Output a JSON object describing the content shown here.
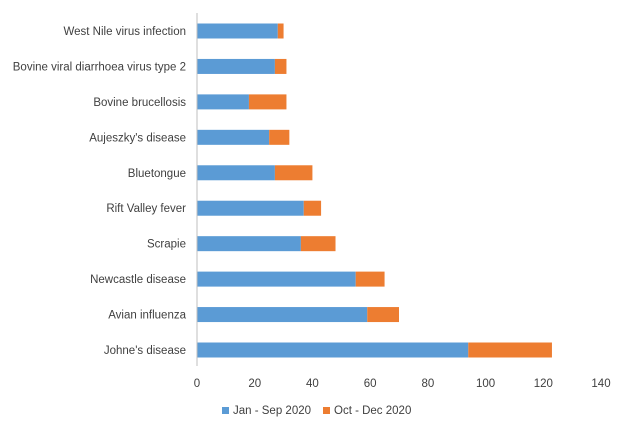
{
  "chart_data": {
    "type": "bar",
    "orientation": "horizontal",
    "stacked": true,
    "title": "",
    "xlabel": "",
    "ylabel": "",
    "categories": [
      "West Nile virus infection",
      "Bovine viral diarrhoea virus type 2",
      "Bovine brucellosis",
      "Aujeszky's disease",
      "Bluetongue",
      "Rift Valley fever",
      "Scrapie",
      "Newcastle disease",
      "Avian influenza",
      "Johne's disease"
    ],
    "series": [
      {
        "name": "Jan - Sep 2020",
        "color": "#5B9BD5",
        "values": [
          28,
          27,
          18,
          25,
          27,
          37,
          36,
          55,
          59,
          94
        ]
      },
      {
        "name": "Oct - Dec 2020",
        "color": "#ED7D31",
        "values": [
          2,
          4,
          13,
          7,
          13,
          6,
          12,
          10,
          11,
          29
        ]
      }
    ],
    "xlim": [
      0,
      140
    ],
    "xticks": [
      "0",
      "20",
      "40",
      "60",
      "80",
      "100",
      "120",
      "140"
    ],
    "grid": false,
    "legend": "bottom"
  }
}
